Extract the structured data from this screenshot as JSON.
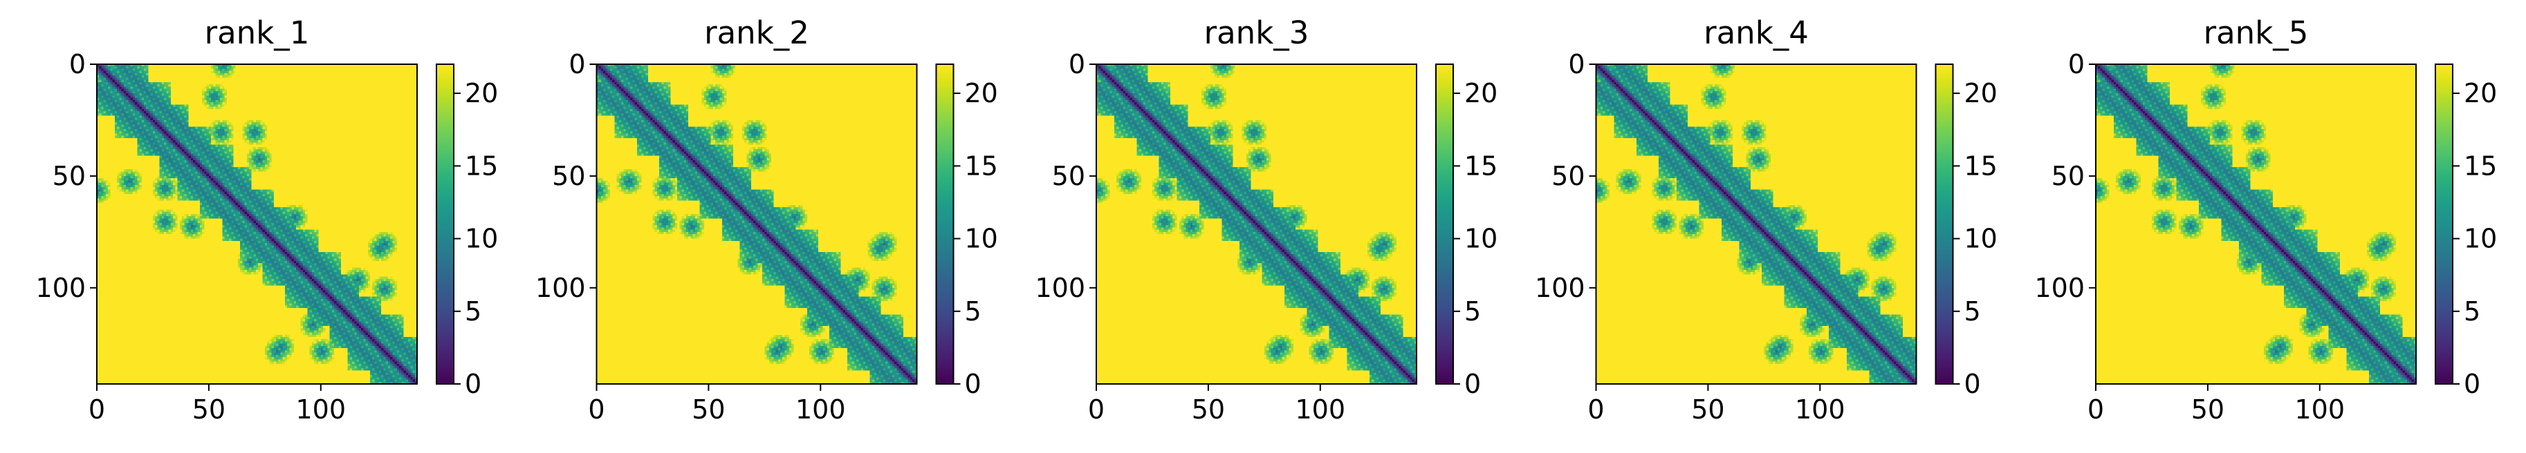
{
  "chart_data": [
    {
      "type": "heatmap",
      "title": "rank_1",
      "xlabel": "",
      "ylabel": "",
      "xlim": [
        0,
        143
      ],
      "ylim": [
        143,
        0
      ],
      "xticks": [
        0,
        50,
        100
      ],
      "yticks": [
        0,
        50,
        100
      ],
      "colorbar": {
        "label": "",
        "range": [
          0,
          22
        ],
        "ticks": [
          0,
          5,
          10,
          15,
          20
        ],
        "colormap": "viridis"
      },
      "grid": false,
      "data_description_ids": [
        "near-diagonal band of low values (0-3)",
        "block clusters 5-15 near diagonal",
        "background saturated at ~21.8"
      ]
    },
    {
      "type": "heatmap",
      "title": "rank_2",
      "xlabel": "",
      "ylabel": "",
      "xlim": [
        0,
        143
      ],
      "ylim": [
        143,
        0
      ],
      "xticks": [
        0,
        50,
        100
      ],
      "yticks": [
        0,
        50,
        100
      ],
      "colorbar": {
        "label": "",
        "range": [
          0,
          22
        ],
        "ticks": [
          0,
          5,
          10,
          15,
          20
        ],
        "colormap": "viridis"
      },
      "grid": false
    },
    {
      "type": "heatmap",
      "title": "rank_3",
      "xlabel": "",
      "ylabel": "",
      "xlim": [
        0,
        143
      ],
      "ylim": [
        143,
        0
      ],
      "xticks": [
        0,
        50,
        100
      ],
      "yticks": [
        0,
        50,
        100
      ],
      "colorbar": {
        "label": "",
        "range": [
          0,
          22
        ],
        "ticks": [
          0,
          5,
          10,
          15,
          20
        ],
        "colormap": "viridis"
      },
      "grid": false
    },
    {
      "type": "heatmap",
      "title": "rank_4",
      "xlabel": "",
      "ylabel": "",
      "xlim": [
        0,
        143
      ],
      "ylim": [
        143,
        0
      ],
      "xticks": [
        0,
        50,
        100
      ],
      "yticks": [
        0,
        50,
        100
      ],
      "colorbar": {
        "label": "",
        "range": [
          0,
          22
        ],
        "ticks": [
          0,
          5,
          10,
          15,
          20
        ],
        "colormap": "viridis"
      },
      "grid": false
    },
    {
      "type": "heatmap",
      "title": "rank_5",
      "xlabel": "",
      "ylabel": "",
      "xlim": [
        0,
        143
      ],
      "ylim": [
        143,
        0
      ],
      "xticks": [
        0,
        50,
        100
      ],
      "yticks": [
        0,
        50,
        100
      ],
      "colorbar": {
        "label": "",
        "range": [
          0,
          22
        ],
        "ticks": [
          0,
          5,
          10,
          15,
          20
        ],
        "colormap": "viridis"
      },
      "grid": false
    }
  ],
  "heatmap_model": {
    "size": 143,
    "max_value": 22,
    "clusters": [
      {
        "start": 0,
        "end": 12
      },
      {
        "start": 8,
        "end": 22
      },
      {
        "start": 18,
        "end": 32
      },
      {
        "start": 28,
        "end": 40
      },
      {
        "start": 36,
        "end": 50
      },
      {
        "start": 46,
        "end": 60
      },
      {
        "start": 56,
        "end": 68
      },
      {
        "start": 64,
        "end": 78
      },
      {
        "start": 74,
        "end": 88
      },
      {
        "start": 84,
        "end": 98
      },
      {
        "start": 94,
        "end": 108
      },
      {
        "start": 104,
        "end": 116
      },
      {
        "start": 112,
        "end": 126
      },
      {
        "start": 122,
        "end": 136
      },
      {
        "start": 130,
        "end": 143
      }
    ],
    "off_diagonal_contacts": [
      {
        "x": 0,
        "y": 56
      },
      {
        "x": 56,
        "y": 0
      },
      {
        "x": 14,
        "y": 52
      },
      {
        "x": 52,
        "y": 14
      },
      {
        "x": 30,
        "y": 55
      },
      {
        "x": 55,
        "y": 30
      },
      {
        "x": 68,
        "y": 88
      },
      {
        "x": 88,
        "y": 68
      },
      {
        "x": 80,
        "y": 128
      },
      {
        "x": 128,
        "y": 80
      },
      {
        "x": 100,
        "y": 128
      },
      {
        "x": 128,
        "y": 100
      },
      {
        "x": 126,
        "y": 82
      },
      {
        "x": 82,
        "y": 126
      },
      {
        "x": 42,
        "y": 72
      },
      {
        "x": 72,
        "y": 42
      },
      {
        "x": 96,
        "y": 116
      },
      {
        "x": 116,
        "y": 96
      },
      {
        "x": 30,
        "y": 70
      },
      {
        "x": 70,
        "y": 30
      }
    ]
  }
}
